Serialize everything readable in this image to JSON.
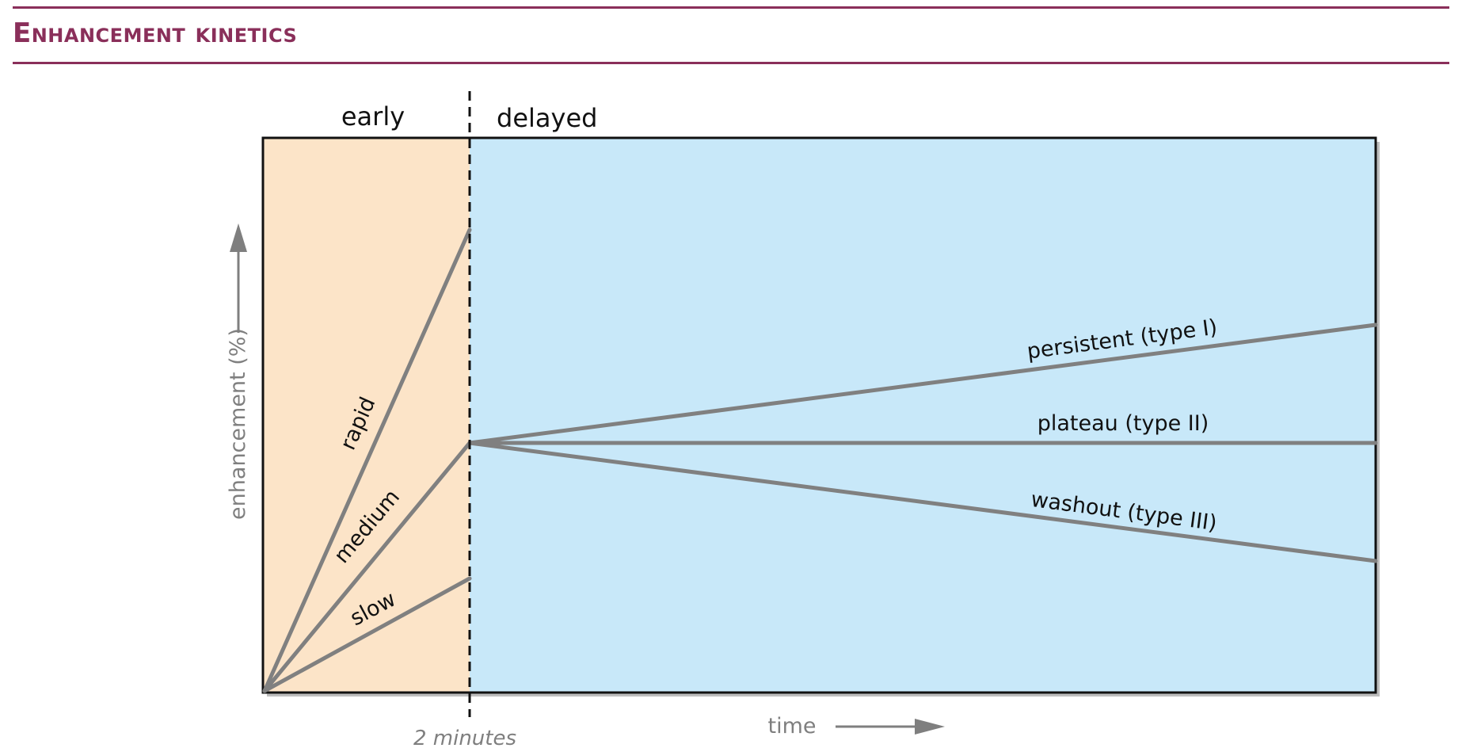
{
  "header": {
    "title": "Enhancement kinetics"
  },
  "diagram": {
    "phases": {
      "early": "early",
      "delayed": "delayed"
    },
    "axes": {
      "y_label": "enhancement (%)",
      "x_label": "time",
      "marker_label": "2 minutes"
    },
    "early_curves": {
      "rapid": "rapid",
      "medium": "medium",
      "slow": "slow"
    },
    "delayed_curves": {
      "persistent": "persistent (type I)",
      "plateau": "plateau (type II)",
      "washout": "washout (type III)"
    },
    "colors": {
      "early_bg": "#fce4c8",
      "delayed_bg": "#c8e8f9",
      "curve": "#808080",
      "title": "#8a2f5a"
    }
  }
}
